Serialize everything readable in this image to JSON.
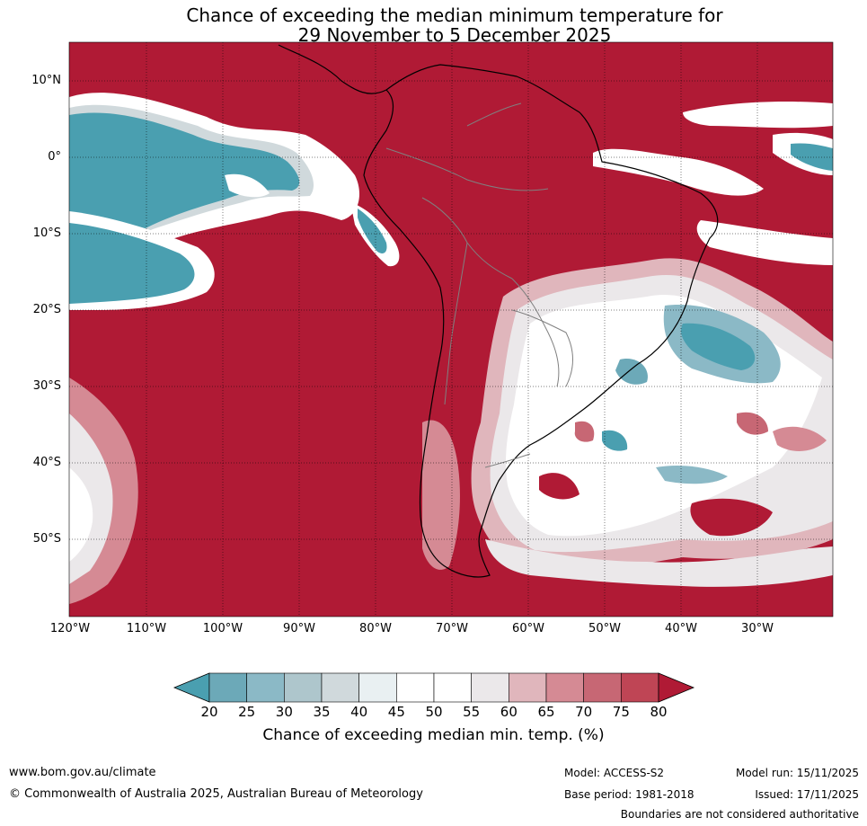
{
  "title": {
    "line1": "Chance of exceeding the median minimum temperature for",
    "line2": "29 November to 5 December 2025"
  },
  "map": {
    "region": "South America and surrounding oceans",
    "latitude_labels": [
      "10°N",
      "0°",
      "10°S",
      "20°S",
      "30°S",
      "40°S",
      "50°S"
    ],
    "longitude_labels": [
      "120°W",
      "110°W",
      "100°W",
      "90°W",
      "80°W",
      "70°W",
      "60°W",
      "50°W",
      "40°W",
      "30°W"
    ],
    "colors": {
      "high": "#b01a35",
      "low": "#4aa0b0",
      "neutral": "#ffffff"
    }
  },
  "colorbar": {
    "ticks": [
      "20",
      "25",
      "30",
      "35",
      "40",
      "45",
      "50",
      "55",
      "60",
      "65",
      "70",
      "75",
      "80"
    ],
    "colors": [
      "#4a9fb0",
      "#6ca9b8",
      "#8bb9c6",
      "#aec6cc",
      "#d0d9dc",
      "#e9f0f2",
      "#ffffff",
      "#ffffff",
      "#ebe8ea",
      "#e0b6bc",
      "#d58a94",
      "#c76774",
      "#bf4555",
      "#b01a35"
    ],
    "label": "Chance of exceeding median min. temp. (%)"
  },
  "footer": {
    "website": "www.bom.gov.au/climate",
    "copyright": "© Commonwealth of Australia 2025, Australian Bureau of Meteorology",
    "model": "Model: ACCESS-S2",
    "base_period": "Base period: 1981-2018",
    "model_run": "Model run: 15/11/2025",
    "issued": "Issued: 17/11/2025",
    "disclaimer": "Boundaries are not considered authoritative"
  }
}
